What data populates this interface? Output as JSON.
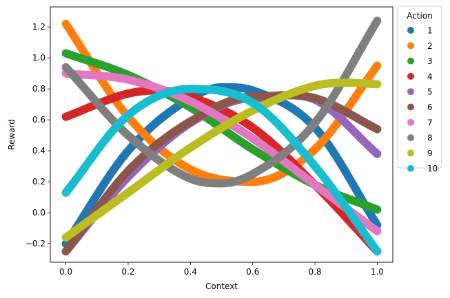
{
  "chart_data": {
    "type": "scatter",
    "title": "",
    "xlabel": "Context",
    "ylabel": "Reward",
    "xlim": [
      -0.05,
      1.05
    ],
    "ylim": [
      -0.32,
      1.33
    ],
    "xticks": [
      0.0,
      0.2,
      0.4,
      0.6,
      0.8,
      1.0
    ],
    "xtick_labels": [
      "0.0",
      "0.2",
      "0.4",
      "0.6",
      "0.8",
      "1.0"
    ],
    "yticks": [
      -0.2,
      0.0,
      0.2,
      0.4,
      0.6,
      0.8,
      1.0,
      1.2
    ],
    "ytick_labels": [
      "−0.2",
      "0.0",
      "0.2",
      "0.4",
      "0.6",
      "0.8",
      "1.0",
      "1.2"
    ],
    "grid": false,
    "legend": {
      "title": "Action",
      "placement": "outside-right-top"
    },
    "series": [
      {
        "name": "1",
        "color": "#1f77b4",
        "x": [
          0.0,
          0.2,
          0.4,
          0.5,
          0.6,
          0.8,
          1.0
        ],
        "y": [
          -0.2,
          0.4,
          0.74,
          0.81,
          0.79,
          0.55,
          -0.08
        ]
      },
      {
        "name": "2",
        "color": "#ff7f0e",
        "x": [
          0.0,
          0.2,
          0.4,
          0.6,
          0.8,
          1.0
        ],
        "y": [
          1.22,
          0.62,
          0.28,
          0.2,
          0.41,
          0.95
        ]
      },
      {
        "name": "3",
        "color": "#2ca02c",
        "x": [
          0.0,
          0.2,
          0.4,
          0.6,
          0.8,
          1.0
        ],
        "y": [
          1.03,
          0.89,
          0.68,
          0.41,
          0.18,
          0.02
        ]
      },
      {
        "name": "4",
        "color": "#d62728",
        "x": [
          0.0,
          0.2,
          0.3,
          0.4,
          0.6,
          0.8,
          1.0
        ],
        "y": [
          0.62,
          0.77,
          0.79,
          0.75,
          0.55,
          0.18,
          -0.25
        ]
      },
      {
        "name": "5",
        "color": "#9467bd",
        "x": [
          0.0,
          0.2,
          0.4,
          0.6,
          0.8,
          1.0
        ],
        "y": [
          -0.25,
          0.23,
          0.58,
          0.74,
          0.73,
          0.38
        ]
      },
      {
        "name": "6",
        "color": "#8c564b",
        "x": [
          0.0,
          0.2,
          0.4,
          0.6,
          0.8,
          1.0
        ],
        "y": [
          -0.25,
          0.27,
          0.59,
          0.75,
          0.74,
          0.54
        ]
      },
      {
        "name": "7",
        "color": "#e377c2",
        "x": [
          0.0,
          0.2,
          0.4,
          0.6,
          0.8,
          1.0
        ],
        "y": [
          0.9,
          0.86,
          0.72,
          0.48,
          0.18,
          -0.12
        ]
      },
      {
        "name": "8",
        "color": "#7f7f7f",
        "x": [
          0.0,
          0.2,
          0.4,
          0.5,
          0.6,
          0.8,
          1.0
        ],
        "y": [
          0.94,
          0.5,
          0.22,
          0.19,
          0.25,
          0.58,
          1.24
        ]
      },
      {
        "name": "9",
        "color": "#bcbd22",
        "x": [
          0.0,
          0.2,
          0.4,
          0.6,
          0.8,
          0.9,
          1.0
        ],
        "y": [
          -0.16,
          0.13,
          0.42,
          0.66,
          0.82,
          0.84,
          0.83
        ]
      },
      {
        "name": "10",
        "color": "#17becf",
        "x": [
          0.0,
          0.2,
          0.4,
          0.6,
          0.8,
          1.0
        ],
        "y": [
          0.13,
          0.63,
          0.8,
          0.71,
          0.3,
          -0.25
        ]
      }
    ]
  }
}
